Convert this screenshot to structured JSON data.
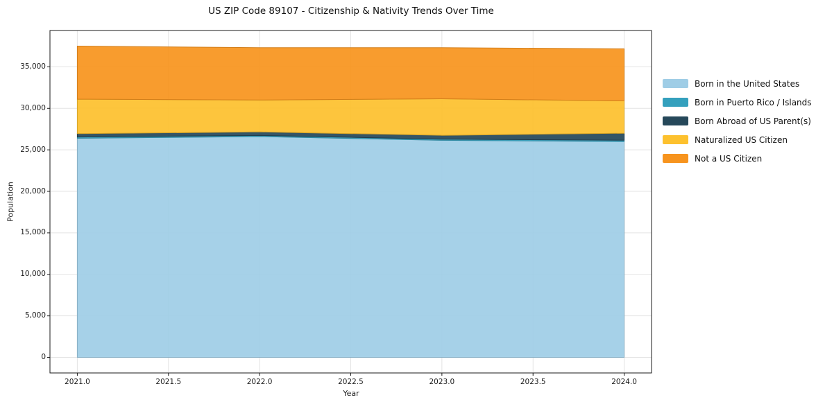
{
  "page": {
    "background": "#ffffff"
  },
  "chart_data": {
    "type": "area",
    "stacked": true,
    "title": "US ZIP Code 89107 - Citizenship & Nativity Trends Over Time",
    "xlabel": "Year",
    "ylabel": "Population",
    "x": [
      2021,
      2022,
      2023,
      2024
    ],
    "series": [
      {
        "name": "Born in the United States",
        "color": "#9FCDE6",
        "values": [
          26400,
          26600,
          26150,
          26000
        ]
      },
      {
        "name": "Born in Puerto Rico / Islands",
        "color": "#34A0BD",
        "values": [
          150,
          130,
          130,
          160
        ]
      },
      {
        "name": "Born Abroad of US Parent(s)",
        "color": "#26485A",
        "values": [
          400,
          430,
          470,
          840
        ]
      },
      {
        "name": "Naturalized US Citizen",
        "color": "#FDC12E",
        "values": [
          4150,
          3840,
          4400,
          3900
        ]
      },
      {
        "name": "Not a US Citizen",
        "color": "#F7941E",
        "values": [
          6400,
          6300,
          6150,
          6270
        ]
      }
    ],
    "totals": [
      37500,
      37300,
      37300,
      37170
    ],
    "xticks": {
      "values": [
        2021.0,
        2021.5,
        2022.0,
        2022.5,
        2023.0,
        2023.5,
        2024.0
      ],
      "labels": [
        "2021.0",
        "2021.5",
        "2022.0",
        "2022.5",
        "2023.0",
        "2023.5",
        "2024.0"
      ]
    },
    "yticks": {
      "values": [
        0,
        5000,
        10000,
        15000,
        20000,
        25000,
        30000,
        35000
      ],
      "labels": [
        "0",
        "5,000",
        "10,000",
        "15,000",
        "20,000",
        "25,000",
        "30,000",
        "35,000"
      ]
    },
    "xlim": [
      2020.85,
      2024.15
    ],
    "ylim": [
      -1875,
      39375
    ],
    "grid": true,
    "grid_color": "#e3e3e3",
    "spine_color": "#1a1a1a",
    "legend_position": "right-outside"
  }
}
